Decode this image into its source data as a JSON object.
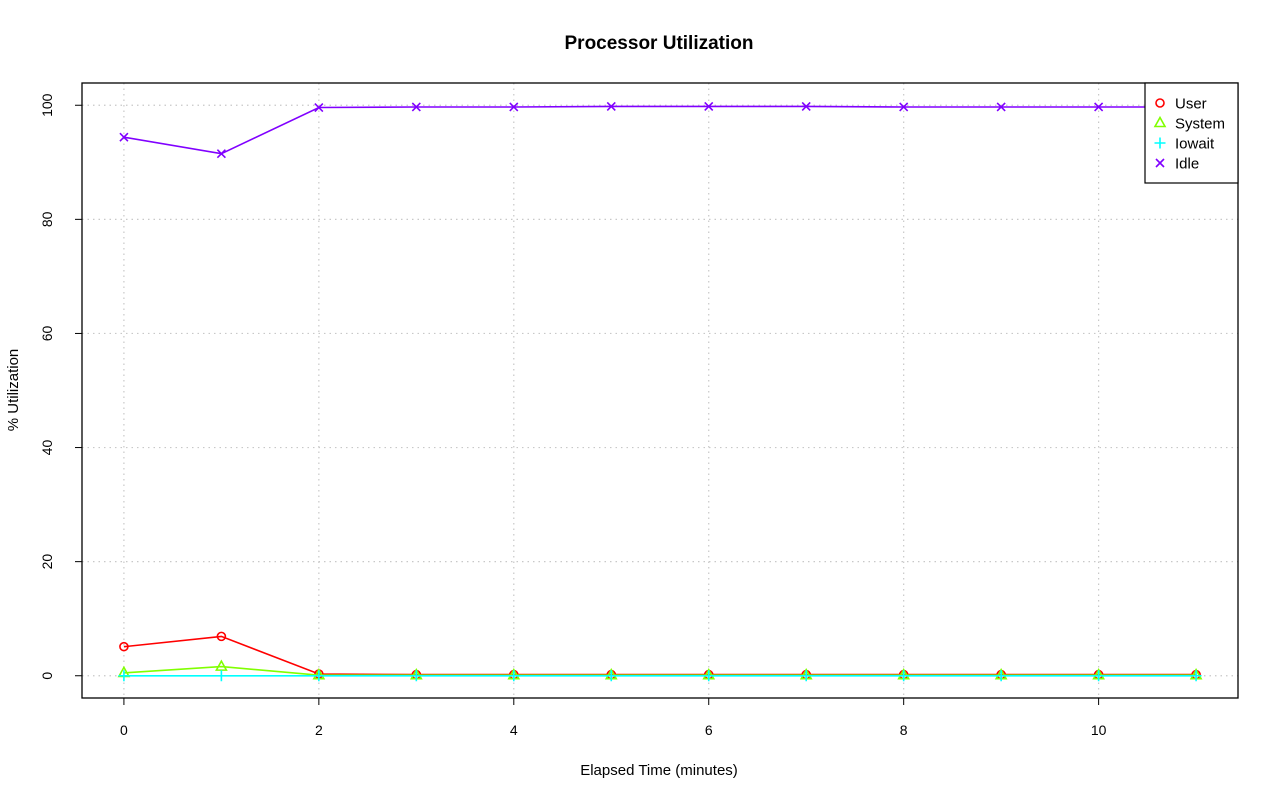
{
  "chart_data": {
    "type": "line",
    "title": "Processor Utilization",
    "xlabel": "Elapsed Time (minutes)",
    "ylabel": "% Utilization",
    "xlim": [
      -0.43,
      11.43
    ],
    "ylim": [
      -3.9,
      103.9
    ],
    "x_ticks": [
      0,
      2,
      4,
      6,
      8,
      10
    ],
    "y_ticks": [
      0,
      20,
      40,
      60,
      80,
      100
    ],
    "grid": true,
    "legend_position": "top-right",
    "x": [
      0,
      1,
      2,
      3,
      4,
      5,
      6,
      7,
      8,
      9,
      10,
      11
    ],
    "series": [
      {
        "name": "User",
        "color": "#FF0000",
        "marker": "circle",
        "values": [
          5.1,
          6.9,
          0.3,
          0.2,
          0.2,
          0.2,
          0.2,
          0.2,
          0.2,
          0.2,
          0.2,
          0.2
        ]
      },
      {
        "name": "System",
        "color": "#80FF00",
        "marker": "triangle",
        "values": [
          0.5,
          1.6,
          0.1,
          0.1,
          0.1,
          0.1,
          0.1,
          0.1,
          0.1,
          0.1,
          0.1,
          0.1
        ]
      },
      {
        "name": "Iowait",
        "color": "#00FFFF",
        "marker": "plus",
        "values": [
          0.0,
          0.0,
          0.0,
          0.0,
          0.0,
          0.0,
          0.0,
          0.0,
          0.0,
          0.0,
          0.0,
          0.0
        ]
      },
      {
        "name": "Idle",
        "color": "#8000FF",
        "marker": "cross",
        "values": [
          94.4,
          91.5,
          99.6,
          99.7,
          99.7,
          99.8,
          99.8,
          99.8,
          99.7,
          99.7,
          99.7,
          99.7
        ]
      }
    ]
  }
}
